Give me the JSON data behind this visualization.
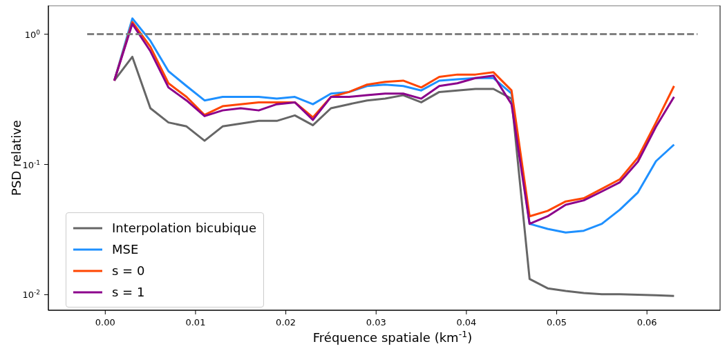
{
  "chart_data": {
    "type": "line",
    "xlabel": "Fréquence spatiale (km$^{-1}$)",
    "ylabel": "PSD relative",
    "log": "y",
    "x": [
      0.001,
      0.003,
      0.005,
      0.007,
      0.009,
      0.011,
      0.013,
      0.015,
      0.017,
      0.019,
      0.021,
      0.023,
      0.025,
      0.027,
      0.029,
      0.031,
      0.033,
      0.035,
      0.037,
      0.039,
      0.041,
      0.043,
      0.045,
      0.047,
      0.049,
      0.051,
      0.053,
      0.055,
      0.057,
      0.059,
      0.061,
      0.063
    ],
    "series": [
      {
        "name": "Interpolation bicubique",
        "color": "#666666",
        "values": [
          0.44,
          0.67,
          0.27,
          0.21,
          0.196,
          0.152,
          0.196,
          0.206,
          0.216,
          0.216,
          0.238,
          0.2,
          0.27,
          0.29,
          0.31,
          0.32,
          0.34,
          0.3,
          0.36,
          0.37,
          0.38,
          0.38,
          0.32,
          0.0132,
          0.0112,
          0.0107,
          0.0103,
          0.0101,
          0.0101,
          0.01,
          0.0099,
          0.0098
        ]
      },
      {
        "name": "MSE",
        "color": "#1e90ff",
        "values": [
          0.44,
          1.32,
          0.89,
          0.52,
          0.4,
          0.31,
          0.33,
          0.33,
          0.33,
          0.32,
          0.33,
          0.29,
          0.35,
          0.36,
          0.4,
          0.41,
          0.4,
          0.37,
          0.44,
          0.45,
          0.46,
          0.46,
          0.35,
          0.035,
          0.032,
          0.03,
          0.031,
          0.035,
          0.045,
          0.061,
          0.106,
          0.142
        ]
      },
      {
        "name": "s = 0",
        "color": "#ff4500",
        "values": [
          0.44,
          1.24,
          0.8,
          0.42,
          0.33,
          0.24,
          0.28,
          0.29,
          0.3,
          0.3,
          0.3,
          0.23,
          0.33,
          0.36,
          0.41,
          0.43,
          0.44,
          0.39,
          0.47,
          0.49,
          0.49,
          0.51,
          0.37,
          0.04,
          0.044,
          0.052,
          0.055,
          0.065,
          0.077,
          0.113,
          0.21,
          0.4
        ]
      },
      {
        "name": "s = 1",
        "color": "#8b008b",
        "values": [
          0.44,
          1.2,
          0.74,
          0.39,
          0.31,
          0.235,
          0.26,
          0.27,
          0.26,
          0.29,
          0.3,
          0.22,
          0.33,
          0.33,
          0.34,
          0.35,
          0.35,
          0.32,
          0.4,
          0.42,
          0.46,
          0.48,
          0.29,
          0.035,
          0.04,
          0.049,
          0.053,
          0.062,
          0.073,
          0.105,
          0.195,
          0.33
        ]
      },
      {
        "color": "#808080",
        "line_style": "dashed",
        "x": [
          -0.002,
          0.0656
        ],
        "values": [
          1,
          1
        ]
      }
    ],
    "xlim": [
      -0.0063,
      0.0681
    ],
    "ylim": [
      0.0076,
      1.66
    ],
    "xticks": [
      {
        "value": 0,
        "label": "0.00"
      },
      {
        "value": 0.01,
        "label": "0.01"
      },
      {
        "value": 0.02,
        "label": "0.02"
      },
      {
        "value": 0.03,
        "label": "0.03"
      },
      {
        "value": 0.04,
        "label": "0.04"
      },
      {
        "value": 0.05,
        "label": "0.05"
      },
      {
        "value": 0.06,
        "label": "0.06"
      }
    ],
    "yticks": [
      {
        "value": 0.01,
        "label": "10$^{-2}$"
      },
      {
        "value": 0.1,
        "label": "10$^{-1}$"
      },
      {
        "value": 1,
        "label": "10$^{0}$"
      }
    ],
    "legend": "bottom left",
    "marker": "none",
    "line_style": "solid"
  }
}
